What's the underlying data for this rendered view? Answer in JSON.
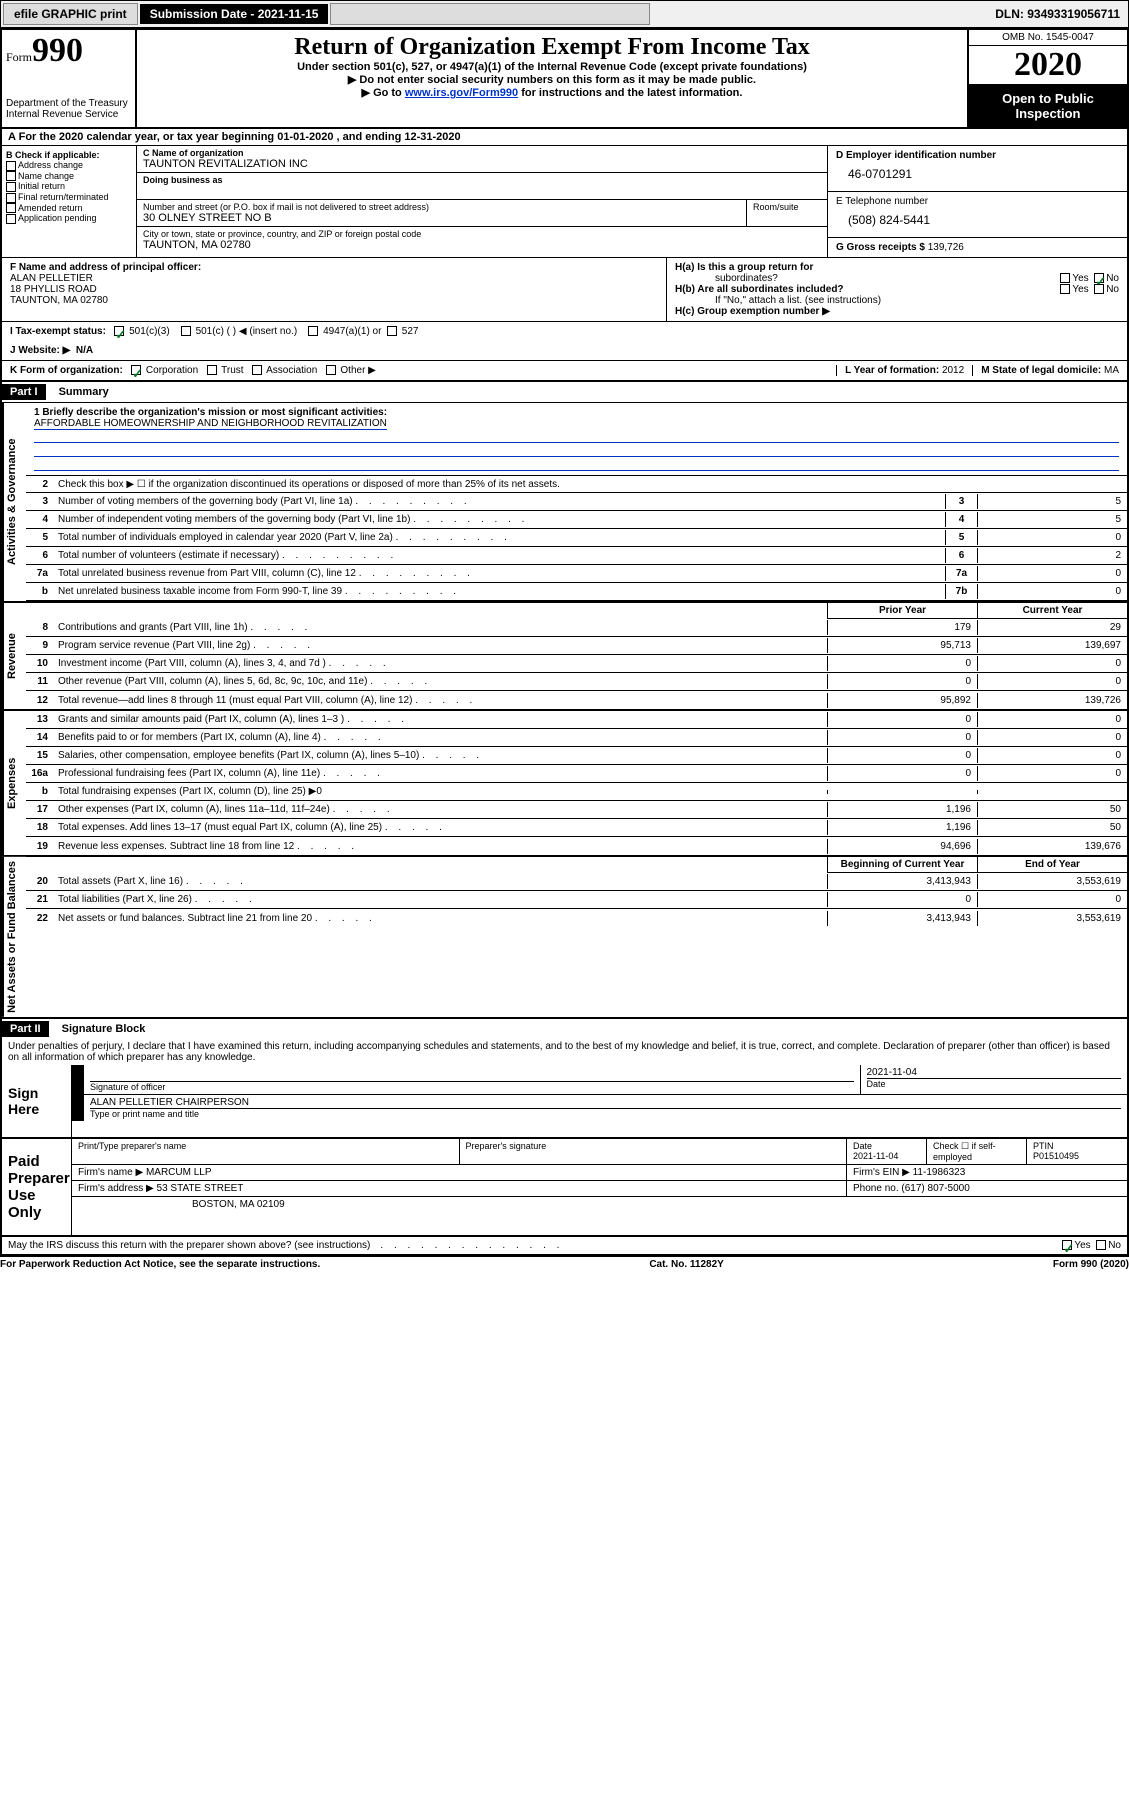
{
  "topbar": {
    "efile": "efile GRAPHIC print",
    "subdate_label": "Submission Date - 2021-11-15",
    "dln": "DLN: 93493319056711"
  },
  "header": {
    "form_prefix": "Form",
    "form_num": "990",
    "dept": "Department of the Treasury",
    "irs": "Internal Revenue Service",
    "title": "Return of Organization Exempt From Income Tax",
    "sub1": "Under section 501(c), 527, or 4947(a)(1) of the Internal Revenue Code (except private foundations)",
    "sub2": "▶ Do not enter social security numbers on this form as it may be made public.",
    "sub3_pre": "▶ Go to ",
    "sub3_link": "www.irs.gov/Form990",
    "sub3_post": " for instructions and the latest information.",
    "omb": "OMB No. 1545-0047",
    "year": "2020",
    "open1": "Open to Public",
    "open2": "Inspection"
  },
  "period": {
    "text": "For the 2020 calendar year, or tax year beginning 01-01-2020    , and ending 12-31-2020"
  },
  "boxB": {
    "hdr": "B Check if applicable:",
    "items": [
      "Address change",
      "Name change",
      "Initial return",
      "Final return/terminated",
      "Amended return",
      "Application pending"
    ]
  },
  "boxC": {
    "name_lbl": "C Name of organization",
    "name": "TAUNTON REVITALIZATION INC",
    "dba_lbl": "Doing business as",
    "street_lbl": "Number and street (or P.O. box if mail is not delivered to street address)",
    "street": "30 OLNEY STREET NO B",
    "suite_lbl": "Room/suite",
    "city_lbl": "City or town, state or province, country, and ZIP or foreign postal code",
    "city": "TAUNTON, MA  02780"
  },
  "boxD": {
    "ein_lbl": "D Employer identification number",
    "ein": "46-0701291",
    "phone_lbl": "E Telephone number",
    "phone": "(508) 824-5441",
    "gross_lbl": "G Gross receipts $ ",
    "gross": "139,726"
  },
  "boxF": {
    "lbl": "F  Name and address of principal officer:",
    "name": "ALAN PELLETIER",
    "addr1": "18 PHYLLIS ROAD",
    "addr2": "TAUNTON, MA  02780"
  },
  "boxH": {
    "ha": "H(a)  Is this a group return for",
    "ha2": "subordinates?",
    "hb": "H(b)  Are all subordinates included?",
    "hb2": "If \"No,\" attach a list. (see instructions)",
    "hc": "H(c)  Group exemption number ▶",
    "yes": "Yes",
    "no": "No"
  },
  "boxI": {
    "lbl": "I   Tax-exempt status:",
    "o1": "501(c)(3)",
    "o2": "501(c) (  ) ◀ (insert no.)",
    "o3": "4947(a)(1) or",
    "o4": "527"
  },
  "boxJ": {
    "lbl": "J   Website: ▶",
    "val": "N/A"
  },
  "boxK": {
    "lbl": "K Form of organization:",
    "o1": "Corporation",
    "o2": "Trust",
    "o3": "Association",
    "o4": "Other ▶"
  },
  "boxL": {
    "lbl": "L Year of formation: ",
    "val": "2012"
  },
  "boxM": {
    "lbl": "M State of legal domicile: ",
    "val": "MA"
  },
  "part1": {
    "hdr": "Part I",
    "title": "Summary",
    "vert1": "Activities & Governance",
    "vert2": "Revenue",
    "vert3": "Expenses",
    "vert4": "Net Assets or Fund Balances",
    "q1_lbl": "1  Briefly describe the organization's mission or most significant activities:",
    "q1_val": "AFFORDABLE HOMEOWNERSHIP AND NEIGHBORHOOD REVITALIZATION",
    "q2": "Check this box ▶ ☐  if the organization discontinued its operations or disposed of more than 25% of its net assets.",
    "lines_gov": [
      {
        "n": "3",
        "t": "Number of voting members of the governing body (Part VI, line 1a)",
        "b": "3",
        "v": "5"
      },
      {
        "n": "4",
        "t": "Number of independent voting members of the governing body (Part VI, line 1b)",
        "b": "4",
        "v": "5"
      },
      {
        "n": "5",
        "t": "Total number of individuals employed in calendar year 2020 (Part V, line 2a)",
        "b": "5",
        "v": "0"
      },
      {
        "n": "6",
        "t": "Total number of volunteers (estimate if necessary)",
        "b": "6",
        "v": "2"
      },
      {
        "n": "7a",
        "t": "Total unrelated business revenue from Part VIII, column (C), line 12",
        "b": "7a",
        "v": "0"
      },
      {
        "n": "b",
        "t": "Net unrelated business taxable income from Form 990-T, line 39",
        "b": "7b",
        "v": "0"
      }
    ],
    "col_prior": "Prior Year",
    "col_current": "Current Year",
    "lines_rev": [
      {
        "n": "8",
        "t": "Contributions and grants (Part VIII, line 1h)",
        "p": "179",
        "c": "29"
      },
      {
        "n": "9",
        "t": "Program service revenue (Part VIII, line 2g)",
        "p": "95,713",
        "c": "139,697"
      },
      {
        "n": "10",
        "t": "Investment income (Part VIII, column (A), lines 3, 4, and 7d )",
        "p": "0",
        "c": "0"
      },
      {
        "n": "11",
        "t": "Other revenue (Part VIII, column (A), lines 5, 6d, 8c, 9c, 10c, and 11e)",
        "p": "0",
        "c": "0"
      },
      {
        "n": "12",
        "t": "Total revenue—add lines 8 through 11 (must equal Part VIII, column (A), line 12)",
        "p": "95,892",
        "c": "139,726"
      }
    ],
    "lines_exp": [
      {
        "n": "13",
        "t": "Grants and similar amounts paid (Part IX, column (A), lines 1–3 )",
        "p": "0",
        "c": "0"
      },
      {
        "n": "14",
        "t": "Benefits paid to or for members (Part IX, column (A), line 4)",
        "p": "0",
        "c": "0"
      },
      {
        "n": "15",
        "t": "Salaries, other compensation, employee benefits (Part IX, column (A), lines 5–10)",
        "p": "0",
        "c": "0"
      },
      {
        "n": "16a",
        "t": "Professional fundraising fees (Part IX, column (A), line 11e)",
        "p": "0",
        "c": "0"
      },
      {
        "n": "b",
        "t": "Total fundraising expenses (Part IX, column (D), line 25) ▶0",
        "p": "",
        "c": ""
      },
      {
        "n": "17",
        "t": "Other expenses (Part IX, column (A), lines 11a–11d, 11f–24e)",
        "p": "1,196",
        "c": "50"
      },
      {
        "n": "18",
        "t": "Total expenses. Add lines 13–17 (must equal Part IX, column (A), line 25)",
        "p": "1,196",
        "c": "50"
      },
      {
        "n": "19",
        "t": "Revenue less expenses. Subtract line 18 from line 12",
        "p": "94,696",
        "c": "139,676"
      }
    ],
    "col_begin": "Beginning of Current Year",
    "col_end": "End of Year",
    "lines_net": [
      {
        "n": "20",
        "t": "Total assets (Part X, line 16)",
        "p": "3,413,943",
        "c": "3,553,619"
      },
      {
        "n": "21",
        "t": "Total liabilities (Part X, line 26)",
        "p": "0",
        "c": "0"
      },
      {
        "n": "22",
        "t": "Net assets or fund balances. Subtract line 21 from line 20",
        "p": "3,413,943",
        "c": "3,553,619"
      }
    ]
  },
  "part2": {
    "hdr": "Part II",
    "title": "Signature Block",
    "declare": "Under penalties of perjury, I declare that I have examined this return, including accompanying schedules and statements, and to the best of my knowledge and belief, it is true, correct, and complete. Declaration of preparer (other than officer) is based on all information of which preparer has any knowledge."
  },
  "sign": {
    "here": "Sign Here",
    "sig_lbl": "Signature of officer",
    "date_lbl": "Date",
    "date": "2021-11-04",
    "name": "ALAN PELLETIER CHAIRPERSON",
    "name_lbl": "Type or print name and title"
  },
  "paid": {
    "lbl": "Paid Preparer Use Only",
    "c1": "Print/Type preparer's name",
    "c2": "Preparer's signature",
    "c3_lbl": "Date",
    "c3": "2021-11-04",
    "c4": "Check ☐ if self-employed",
    "c5_lbl": "PTIN",
    "c5": "P01510495",
    "firm_lbl": "Firm's name    ▶",
    "firm": "MARCUM LLP",
    "ein_lbl": "Firm's EIN ▶",
    "ein": "11-1986323",
    "addr_lbl": "Firm's address ▶",
    "addr1": "53 STATE STREET",
    "addr2": "BOSTON, MA  02109",
    "phone_lbl": "Phone no.",
    "phone": "(617) 807-5000",
    "discuss": "May the IRS discuss this return with the preparer shown above? (see instructions)"
  },
  "footer": {
    "left": "For Paperwork Reduction Act Notice, see the separate instructions.",
    "mid": "Cat. No. 11282Y",
    "right": "Form 990 (2020)"
  }
}
